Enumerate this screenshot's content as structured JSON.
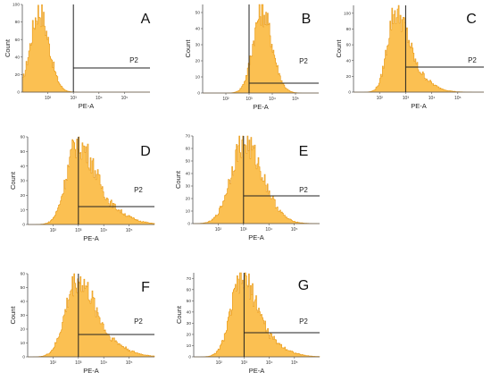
{
  "chart_data": [
    {
      "type": "histogram",
      "panel": "A",
      "xlabel": "PE-A",
      "ylabel": "Count",
      "xscale": "log",
      "xlim": [
        10,
        1000000
      ],
      "ylim": [
        0,
        100
      ],
      "yticks": [
        0,
        20,
        40,
        60,
        80,
        100
      ],
      "xticks": [
        "10²",
        "10³",
        "10⁴",
        "10⁵"
      ],
      "gate": {
        "name": "P2",
        "x_threshold": 1000
      },
      "peak_log10": 1.65,
      "spread": 0.33,
      "skew": 0.3
    },
    {
      "type": "histogram",
      "panel": "B",
      "xlabel": "PE-A",
      "ylabel": "Count",
      "xscale": "log",
      "xlim": [
        10,
        1000000
      ],
      "ylim": [
        0,
        55
      ],
      "yticks": [
        0,
        10,
        20,
        30,
        40,
        50
      ],
      "xticks": [
        "10²",
        "10³",
        "10⁴",
        "10⁵"
      ],
      "gate": {
        "name": "P2",
        "x_threshold": 1000
      },
      "peak_log10": 3.55,
      "spread": 0.38,
      "skew": 0.3
    },
    {
      "type": "histogram",
      "panel": "C",
      "xlabel": "PE-A",
      "ylabel": "Count",
      "xscale": "log",
      "xlim": [
        10,
        1000000
      ],
      "ylim": [
        0,
        110
      ],
      "yticks": [
        0,
        20,
        40,
        60,
        80,
        100
      ],
      "xticks": [
        "10²",
        "10³",
        "10⁴",
        "10⁵"
      ],
      "gate": {
        "name": "P2",
        "x_threshold": 1000
      },
      "peak_log10": 2.6,
      "spread": 0.3,
      "skew": 1.6
    },
    {
      "type": "histogram",
      "panel": "D",
      "xlabel": "PE-A",
      "ylabel": "Count",
      "xscale": "log",
      "xlim": [
        10,
        1000000
      ],
      "ylim": [
        0,
        60
      ],
      "yticks": [
        0,
        10,
        20,
        30,
        40,
        50,
        60
      ],
      "xticks": [
        "10²",
        "10³",
        "10⁴",
        "10⁵"
      ],
      "gate": {
        "name": "P2",
        "x_threshold": 1000
      },
      "peak_log10": 2.95,
      "spread": 0.42,
      "skew": 1.6
    },
    {
      "type": "histogram",
      "panel": "E",
      "xlabel": "PE-A",
      "ylabel": "Count",
      "xscale": "log",
      "xlim": [
        10,
        1000000
      ],
      "ylim": [
        0,
        70
      ],
      "yticks": [
        0,
        10,
        20,
        30,
        40,
        50,
        60,
        70
      ],
      "xticks": [
        "10²",
        "10³",
        "10⁴",
        "10⁵"
      ],
      "gate": {
        "name": "P2",
        "x_threshold": 1000
      },
      "peak_log10": 3.0,
      "spread": 0.5,
      "skew": 0.9
    },
    {
      "type": "histogram",
      "panel": "F",
      "xlabel": "PE-A",
      "ylabel": "Count",
      "xscale": "log",
      "xlim": [
        10,
        1000000
      ],
      "ylim": [
        0,
        60
      ],
      "yticks": [
        0,
        10,
        20,
        30,
        40,
        50,
        60
      ],
      "xticks": [
        "10²",
        "10³",
        "10⁴",
        "10⁵"
      ],
      "gate": {
        "name": "P2",
        "x_threshold": 1000
      },
      "peak_log10": 2.95,
      "spread": 0.45,
      "skew": 1.3
    },
    {
      "type": "histogram",
      "panel": "G",
      "xlabel": "PE-A",
      "ylabel": "Count",
      "xscale": "log",
      "xlim": [
        10,
        1000000
      ],
      "ylim": [
        0,
        75
      ],
      "yticks": [
        0,
        10,
        20,
        30,
        40,
        50,
        60,
        70
      ],
      "xticks": [
        "10²",
        "10³",
        "10⁴",
        "10⁵"
      ],
      "gate": {
        "name": "P2",
        "x_threshold": 1000
      },
      "peak_log10": 2.9,
      "spread": 0.42,
      "skew": 1.2
    }
  ],
  "colors": {
    "fill": "#fbc052",
    "edge": "#e99a18",
    "axis": "#555555",
    "gate": "#222222"
  }
}
